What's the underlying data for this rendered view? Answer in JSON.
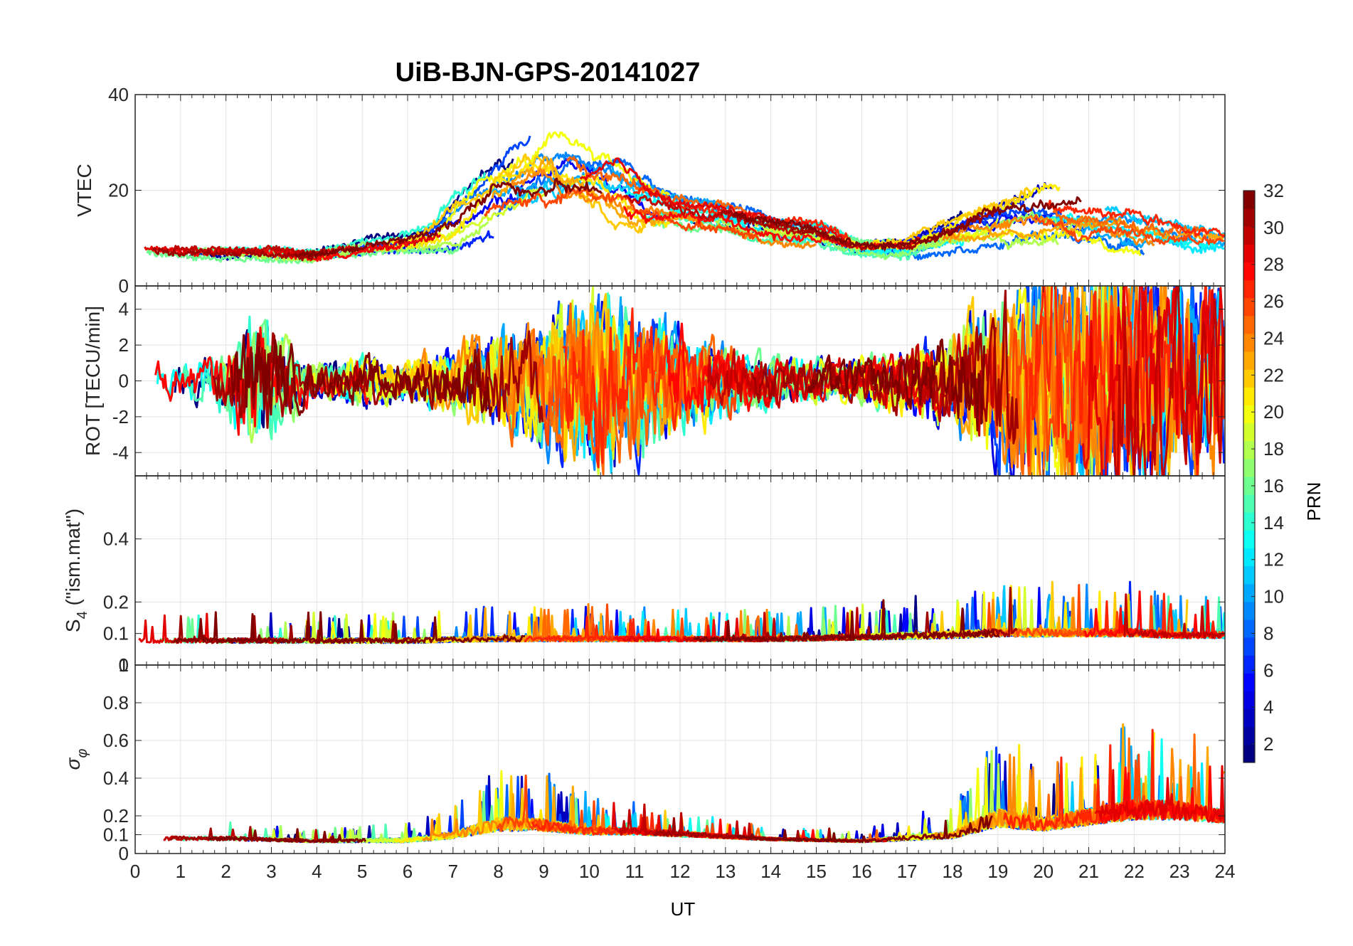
{
  "figure": {
    "title": "UiB-BJN-GPS-20141027",
    "x_label": "UT"
  },
  "colorbar": {
    "label": "PRN",
    "colormap": "jet",
    "range": [
      1,
      32
    ],
    "ticks": [
      2,
      4,
      6,
      8,
      10,
      12,
      14,
      16,
      18,
      20,
      22,
      24,
      26,
      28,
      30,
      32
    ]
  },
  "chart_data": [
    {
      "type": "line",
      "panel": "vtec",
      "ylabel": "VTEC",
      "xlim": [
        0,
        24
      ],
      "ylim": [
        0,
        40
      ],
      "xticks": [
        0,
        1,
        2,
        3,
        4,
        5,
        6,
        7,
        8,
        9,
        10,
        11,
        12,
        13,
        14,
        15,
        16,
        17,
        18,
        19,
        20,
        21,
        22,
        23,
        24
      ],
      "yticks": [
        20,
        40
      ],
      "ytick_labels": [
        "20",
        "40"
      ],
      "grid": true,
      "envelope": {
        "x": [
          0,
          1,
          2,
          3,
          4,
          5,
          6,
          6.5,
          7,
          7.5,
          8,
          8.5,
          9,
          9.5,
          10,
          10.5,
          11,
          11.5,
          12,
          13,
          14,
          15,
          16,
          17,
          18,
          19,
          20,
          21,
          22,
          23,
          24
        ],
        "center": [
          8,
          7,
          7,
          7,
          6.5,
          8,
          9,
          10,
          13,
          16,
          19,
          21,
          22,
          22,
          21,
          19,
          17,
          16,
          15,
          14,
          12,
          11,
          8,
          8,
          11,
          13,
          15,
          14,
          13,
          11,
          10
        ],
        "spread": [
          1.5,
          1.5,
          1.5,
          1.5,
          1.5,
          2,
          2,
          3,
          6,
          7,
          8,
          9,
          10,
          10,
          9,
          9,
          8,
          6,
          4,
          3,
          3,
          3,
          2,
          2.5,
          4,
          5,
          6,
          6,
          6,
          5,
          4
        ]
      },
      "noise_scale": 0.6
    },
    {
      "type": "line",
      "panel": "rot",
      "ylabel": "ROT [TECU/min]",
      "xlim": [
        0,
        24
      ],
      "ylim": [
        -5.3,
        5.3
      ],
      "yticks": [
        -4,
        -2,
        0,
        2,
        4
      ],
      "ytick_labels": [
        "-4",
        "-2",
        "0",
        "2",
        "4"
      ],
      "top_label": "0",
      "grid": true,
      "envelope": {
        "x": [
          0,
          1,
          2,
          2.5,
          3,
          3.5,
          4,
          5,
          6,
          7,
          8,
          9,
          10,
          11,
          12,
          13,
          14,
          15,
          16,
          17,
          18,
          19,
          20,
          21,
          22,
          23,
          24
        ],
        "center": [
          0,
          0,
          0,
          0,
          0,
          0,
          0,
          0,
          0,
          0,
          0,
          0,
          0,
          0,
          0,
          0,
          0,
          0,
          0,
          0,
          0,
          0,
          0,
          0,
          0,
          0,
          0
        ],
        "spread": [
          0.8,
          0.7,
          1.2,
          2.5,
          2.2,
          1.2,
          0.6,
          0.9,
          0.8,
          1.2,
          1.8,
          2.2,
          3.2,
          2.8,
          1.8,
          1.3,
          0.9,
          0.8,
          0.8,
          1.2,
          1.8,
          3,
          4.2,
          4.5,
          4.5,
          4,
          3.5
        ]
      },
      "noise_scale": 1.0
    },
    {
      "type": "line",
      "panel": "s4",
      "ylabel": "S4 (\"ism.mat\")",
      "xlim": [
        0,
        24
      ],
      "ylim": [
        0,
        0.6
      ],
      "yticks": [
        0,
        0.1,
        0.2,
        0.4
      ],
      "ytick_labels": [
        "0",
        "0.1",
        "0.2",
        "0.4"
      ],
      "grid": true,
      "envelope": {
        "x": [
          0,
          2,
          4,
          6,
          8,
          10,
          12,
          14,
          16,
          18,
          19,
          20,
          21,
          22,
          23,
          24
        ],
        "center": [
          0.07,
          0.07,
          0.07,
          0.07,
          0.075,
          0.075,
          0.075,
          0.075,
          0.08,
          0.085,
          0.09,
          0.09,
          0.09,
          0.09,
          0.085,
          0.085
        ],
        "spread": [
          0.03,
          0.03,
          0.03,
          0.03,
          0.035,
          0.035,
          0.03,
          0.03,
          0.035,
          0.045,
          0.05,
          0.05,
          0.05,
          0.05,
          0.04,
          0.04
        ]
      },
      "noise_scale": 0.5
    },
    {
      "type": "line",
      "panel": "sigma_phi",
      "ylabel": "σφ",
      "xlim": [
        0,
        24
      ],
      "ylim": [
        0,
        1
      ],
      "yticks": [
        0,
        0.1,
        0.2,
        0.4,
        0.6,
        0.8
      ],
      "ytick_labels": [
        "0",
        "0.1",
        "0.2",
        "0.4",
        "0.6",
        "0.8"
      ],
      "top_label": "1",
      "grid": true,
      "envelope": {
        "x": [
          0,
          2,
          4,
          6,
          7,
          8,
          9,
          10,
          11,
          12,
          14,
          16,
          18,
          19,
          20,
          21,
          22,
          23,
          24
        ],
        "center": [
          0.07,
          0.07,
          0.06,
          0.06,
          0.08,
          0.12,
          0.12,
          0.1,
          0.1,
          0.09,
          0.07,
          0.06,
          0.08,
          0.14,
          0.12,
          0.15,
          0.18,
          0.18,
          0.16
        ],
        "spread": [
          0.03,
          0.03,
          0.02,
          0.03,
          0.05,
          0.1,
          0.09,
          0.06,
          0.05,
          0.04,
          0.02,
          0.02,
          0.05,
          0.14,
          0.1,
          0.13,
          0.15,
          0.14,
          0.1
        ]
      },
      "noise_scale": 0.7
    }
  ]
}
